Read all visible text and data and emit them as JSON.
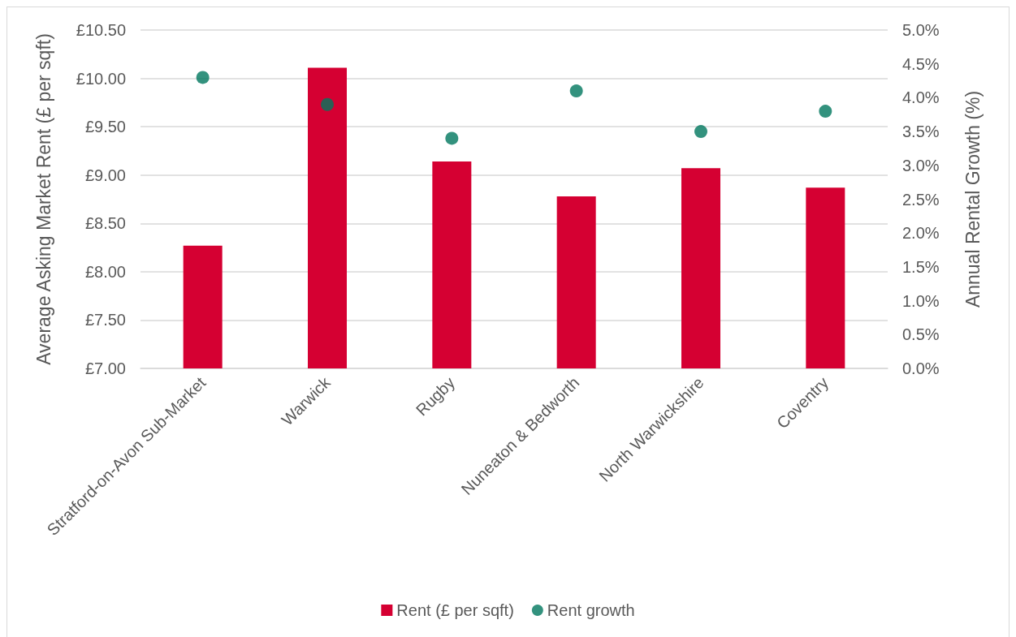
{
  "chart_data": {
    "type": "bar",
    "categories": [
      "Stratford-on-Avon Sub-Market",
      "Warwick",
      "Rugby",
      "Nuneaton & Bedworth",
      "North Warwickshire",
      "Coventry"
    ],
    "series": [
      {
        "name": "Rent (£ per sqft)",
        "color": "#d50032",
        "values": [
          8.27,
          10.11,
          9.14,
          8.78,
          9.07,
          8.87
        ]
      },
      {
        "name": "Rent growth",
        "type": "scatter",
        "axis": "y2",
        "color": "#00775e",
        "values": [
          4.3,
          3.9,
          3.4,
          4.1,
          3.5,
          3.8
        ]
      }
    ],
    "ylabel": "Average Asking Market Rent (£ per sqft)",
    "y2label": "Annual Rental Growth (%)",
    "ylim": [
      7,
      10.5
    ],
    "yticks": [
      {
        "value": 7,
        "label": "£7.00"
      },
      {
        "value": 7.5,
        "label": "£7.50"
      },
      {
        "value": 8,
        "label": "£8.00"
      },
      {
        "value": 8.5,
        "label": "£8.50"
      },
      {
        "value": 9,
        "label": "£9.00"
      },
      {
        "value": 9.5,
        "label": "£9.50"
      },
      {
        "value": 10,
        "label": "£10.00"
      },
      {
        "value": 10.5,
        "label": "£10.50"
      }
    ],
    "y2lim": [
      0,
      5
    ],
    "y2ticks": [
      {
        "value": 0,
        "label": "0.0%"
      },
      {
        "value": 0.5,
        "label": "0.5%"
      },
      {
        "value": 1,
        "label": "1.0%"
      },
      {
        "value": 1.5,
        "label": "1.5%"
      },
      {
        "value": 2,
        "label": "2.0%"
      },
      {
        "value": 2.5,
        "label": "2.5%"
      },
      {
        "value": 3,
        "label": "3.0%"
      },
      {
        "value": 3.5,
        "label": "3.5%"
      },
      {
        "value": 4,
        "label": "4.0%"
      },
      {
        "value": 4.5,
        "label": "4.5%"
      },
      {
        "value": 5,
        "label": "5.0%"
      }
    ],
    "grid": "y",
    "legend": "bottom",
    "marker": "circle"
  }
}
